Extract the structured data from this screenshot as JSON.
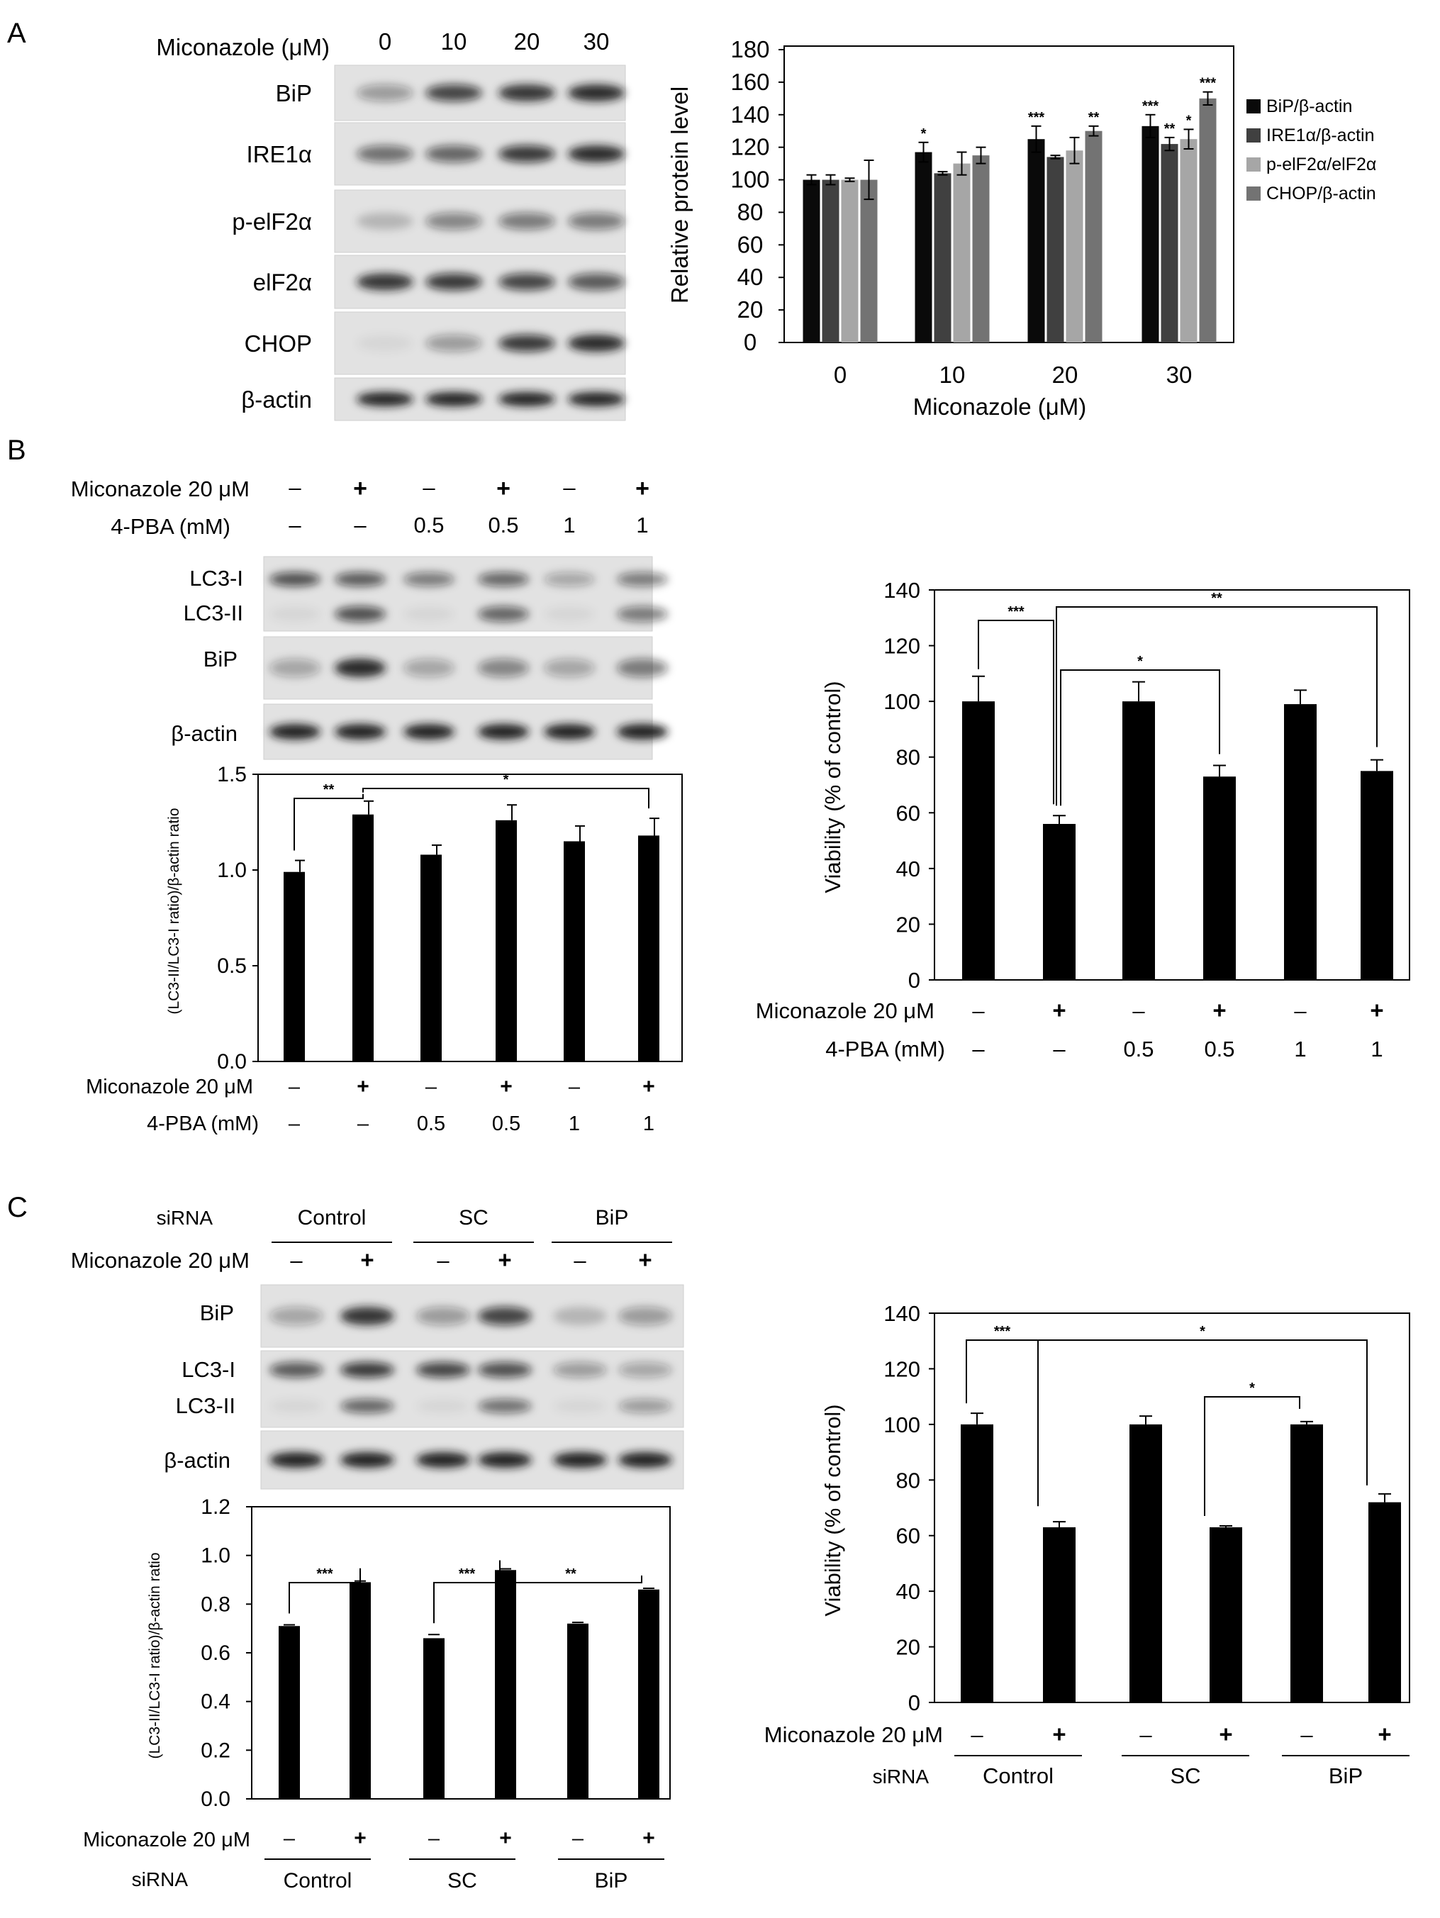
{
  "panels": {
    "a": {
      "letter": "A",
      "blot": {
        "treatment_label": "Miconazole (μM)",
        "doses": [
          "0",
          "10",
          "20",
          "30"
        ],
        "rows": [
          "BiP",
          "IRE1α",
          "p-elF2α",
          "elF2α",
          "CHOP",
          "β-actin"
        ],
        "band_intensity": [
          [
            0.35,
            0.75,
            0.85,
            0.9
          ],
          [
            0.55,
            0.6,
            0.8,
            0.9
          ],
          [
            0.2,
            0.45,
            0.5,
            0.5
          ],
          [
            0.85,
            0.8,
            0.75,
            0.65
          ],
          [
            0.05,
            0.35,
            0.8,
            0.9
          ],
          [
            0.95,
            0.95,
            0.95,
            0.95
          ]
        ]
      }
    },
    "b": {
      "letter": "B",
      "blot": {
        "treatment_rows": [
          {
            "label": "Miconazole 20 μM",
            "values": [
              "–",
              "+",
              "–",
              "+",
              "–",
              "+"
            ]
          },
          {
            "label": "4-PBA (mM)",
            "values": [
              "–",
              "–",
              "0.5",
              "0.5",
              "1",
              "1"
            ]
          }
        ],
        "row_labels": {
          "lc3i": "LC3-I",
          "lc3ii": "LC3-II",
          "bip": "BiP",
          "actin": "β-actin"
        },
        "band_intensity": {
          "lc3i": [
            0.7,
            0.65,
            0.5,
            0.6,
            0.3,
            0.5
          ],
          "lc3ii": [
            0.05,
            0.7,
            0.05,
            0.6,
            0.05,
            0.5
          ],
          "bip": [
            0.3,
            0.9,
            0.3,
            0.45,
            0.3,
            0.5
          ],
          "actin": [
            0.95,
            0.95,
            0.95,
            0.95,
            0.95,
            0.95
          ]
        }
      }
    },
    "c": {
      "letter": "C",
      "blot": {
        "sirna_label": "siRNA",
        "groups": [
          "Control",
          "SC",
          "BiP"
        ],
        "miconazole_label": "Miconazole 20 μM",
        "miconazole_values": [
          "–",
          "+",
          "–",
          "+",
          "–",
          "+"
        ],
        "row_labels": {
          "bip": "BiP",
          "lc3i": "LC3-I",
          "lc3ii": "LC3-II",
          "actin": "β-actin"
        },
        "band_intensity": {
          "bip": [
            0.3,
            0.85,
            0.35,
            0.75,
            0.2,
            0.35
          ],
          "lc3i": [
            0.65,
            0.8,
            0.75,
            0.7,
            0.35,
            0.3
          ],
          "lc3ii": [
            0.05,
            0.6,
            0.05,
            0.55,
            0.05,
            0.35
          ],
          "actin": [
            0.95,
            0.95,
            0.95,
            0.95,
            0.95,
            0.95
          ]
        }
      }
    }
  },
  "chart_data": [
    {
      "id": "a_chart",
      "type": "bar",
      "categories": [
        "0",
        "10",
        "20",
        "30"
      ],
      "xlabel": "Miconazole (μM)",
      "ylabel": "Relative protein level",
      "ylim": [
        0,
        180
      ],
      "yticks": [
        0,
        20,
        40,
        60,
        80,
        100,
        120,
        140,
        160,
        180
      ],
      "legend": "right",
      "series": [
        {
          "name": "BiP/β-actin",
          "color": "#0a0a0a",
          "values": [
            100,
            117,
            125,
            133
          ],
          "errors": [
            3,
            6,
            8,
            7
          ],
          "stars": [
            "",
            "*",
            "***",
            "***"
          ]
        },
        {
          "name": "IRE1α/β-actin",
          "color": "#404040",
          "values": [
            100,
            104,
            114,
            122
          ],
          "errors": [
            3,
            1,
            1,
            4
          ],
          "stars": [
            "",
            "",
            "",
            "**"
          ]
        },
        {
          "name": "p-elF2α/elF2α",
          "color": "#a6a6a6",
          "values": [
            100,
            110,
            118,
            125
          ],
          "errors": [
            1,
            7,
            8,
            6
          ],
          "stars": [
            "",
            "",
            "",
            "*"
          ]
        },
        {
          "name": "CHOP/β-actin",
          "color": "#737373",
          "values": [
            100,
            115,
            130,
            150
          ],
          "errors": [
            12,
            5,
            3,
            4
          ],
          "stars": [
            "",
            "",
            "**",
            "***"
          ]
        }
      ]
    },
    {
      "id": "b_blot_chart",
      "type": "bar",
      "categories": [
        "1",
        "2",
        "3",
        "4",
        "5",
        "6"
      ],
      "values": [
        0.99,
        1.29,
        1.08,
        1.26,
        1.15,
        1.18
      ],
      "errors": [
        0.06,
        0.07,
        0.05,
        0.08,
        0.08,
        0.09
      ],
      "ylabel": "(LC3-II/LC3-I ratio)/β-actin ratio",
      "ylim": [
        0,
        1.5
      ],
      "yticks": [
        "0.0",
        "0.5",
        "1.0",
        "1.5"
      ],
      "treatment_rows": [
        {
          "label": "Miconazole 20 μM",
          "values": [
            "–",
            "+",
            "–",
            "+",
            "–",
            "+"
          ]
        },
        {
          "label": "4-PBA (mM)",
          "values": [
            "–",
            "–",
            "0.5",
            "0.5",
            "1",
            "1"
          ]
        }
      ],
      "brackets": [
        {
          "from": 0,
          "to": 1,
          "label": "**"
        },
        {
          "from": 1,
          "to": 5,
          "label": "*"
        }
      ]
    },
    {
      "id": "b_viability",
      "type": "bar",
      "categories": [
        "1",
        "2",
        "3",
        "4",
        "5",
        "6"
      ],
      "values": [
        100,
        56,
        100,
        73,
        99,
        75
      ],
      "errors": [
        9,
        3,
        7,
        4,
        5,
        4
      ],
      "ylabel": "Viability   (% of control)",
      "ylim": [
        0,
        140
      ],
      "yticks": [
        0,
        20,
        40,
        60,
        80,
        100,
        120,
        140
      ],
      "treatment_rows": [
        {
          "label": "Miconazole 20 μM",
          "values": [
            "–",
            "+",
            "–",
            "+",
            "–",
            "+"
          ]
        },
        {
          "label": "4-PBA (mM)",
          "values": [
            "–",
            "–",
            "0.5",
            "0.5",
            "1",
            "1"
          ]
        }
      ],
      "brackets": [
        {
          "from": 0,
          "to": 1,
          "label": "***"
        },
        {
          "from": 1,
          "to": 5,
          "label": "**"
        },
        {
          "from": 1,
          "to": 3,
          "label": "*"
        }
      ]
    },
    {
      "id": "c_blot_chart",
      "type": "bar",
      "categories": [
        "1",
        "2",
        "3",
        "4",
        "5",
        "6"
      ],
      "values": [
        0.71,
        0.89,
        0.66,
        0.94,
        0.72,
        0.86
      ],
      "errors": [
        0.005,
        0.005,
        0.015,
        0.005,
        0.005,
        0.005
      ],
      "ylabel": "(LC3-II/LC3-I ratio)/β-actin ratio",
      "ylim": [
        0,
        1.2
      ],
      "yticks": [
        "0.0",
        "0.2",
        "0.4",
        "0.6",
        "0.8",
        "1.0",
        "1.2"
      ],
      "miconazole_label": "Miconazole 20 μM",
      "miconazole_values": [
        "–",
        "+",
        "–",
        "+",
        "–",
        "+"
      ],
      "sirna_label": "siRNA",
      "groups": [
        "Control",
        "SC",
        "BiP"
      ],
      "brackets": [
        {
          "from": 0,
          "to": 1,
          "label": "***"
        },
        {
          "from": 2,
          "to": 3,
          "label": "***"
        },
        {
          "from": 3,
          "to": 5,
          "label": "**"
        }
      ]
    },
    {
      "id": "c_viability",
      "type": "bar",
      "categories": [
        "1",
        "2",
        "3",
        "4",
        "5",
        "6"
      ],
      "values": [
        100,
        63,
        100,
        63,
        100,
        72
      ],
      "errors": [
        4,
        2,
        3,
        0.5,
        1,
        3
      ],
      "ylabel": "Viability   (% of control)",
      "ylim": [
        0,
        140
      ],
      "yticks": [
        0,
        20,
        40,
        60,
        80,
        100,
        120,
        140
      ],
      "miconazole_label": "Miconazole 20 μM",
      "miconazole_values": [
        "–",
        "+",
        "–",
        "+",
        "–",
        "+"
      ],
      "sirna_label": "siRNA",
      "groups": [
        "Control",
        "SC",
        "BiP"
      ],
      "brackets": [
        {
          "from": 0,
          "to": 1,
          "label": "***"
        },
        {
          "from": 1,
          "to": 5,
          "label": "*"
        },
        {
          "from": 3,
          "to": 4,
          "label": "*"
        }
      ]
    }
  ]
}
